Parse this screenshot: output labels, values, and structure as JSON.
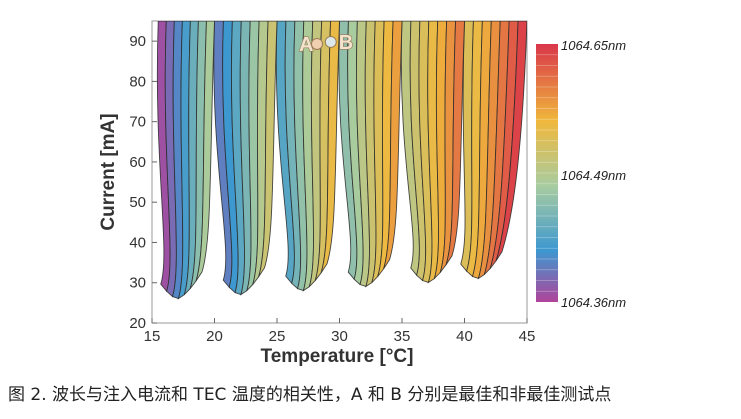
{
  "chart_data": {
    "type": "heatmap",
    "title": "",
    "xlabel": "Temperature [°C]",
    "ylabel": "Current [mA]",
    "xlim": [
      15,
      45
    ],
    "ylim": [
      20,
      95
    ],
    "xticks": [
      "15",
      "20",
      "25",
      "30",
      "35",
      "40",
      "45"
    ],
    "yticks": [
      "20",
      "30",
      "40",
      "50",
      "60",
      "70",
      "80",
      "90"
    ],
    "colorbar": {
      "labels": [
        "1064.65nm",
        "1064.49nm",
        "1064.36nm"
      ],
      "values": [
        1064.65,
        1064.49,
        1064.36
      ],
      "colors_top_to_bottom": [
        "#d9364a",
        "#f0b83c",
        "#a8cca0",
        "#3d98d0",
        "#b0449a"
      ]
    },
    "mode_bands": [
      {
        "x_top_left": 15.5,
        "x_top_right": 20,
        "tip_x": 18,
        "tip_y": 26,
        "min_nm": 1064.36,
        "max_nm": 1064.52
      },
      {
        "x_top_left": 20,
        "x_top_right": 25,
        "tip_x": 23,
        "tip_y": 27,
        "min_nm": 1064.4,
        "max_nm": 1064.55
      },
      {
        "x_top_left": 25,
        "x_top_right": 30,
        "tip_x": 28,
        "tip_y": 28,
        "min_nm": 1064.44,
        "max_nm": 1064.58
      },
      {
        "x_top_left": 30,
        "x_top_right": 35,
        "tip_x": 33,
        "tip_y": 29,
        "min_nm": 1064.48,
        "max_nm": 1064.6
      },
      {
        "x_top_left": 35,
        "x_top_right": 40,
        "tip_x": 38,
        "tip_y": 30,
        "min_nm": 1064.52,
        "max_nm": 1064.62
      },
      {
        "x_top_left": 40,
        "x_top_right": 45,
        "tip_x": 42,
        "tip_y": 31,
        "min_nm": 1064.55,
        "max_nm": 1064.65
      }
    ],
    "annotations": [
      {
        "label": "A",
        "x": 28.2,
        "y": 89.3,
        "color": "#f0cfb0"
      },
      {
        "label": "B",
        "x": 29.3,
        "y": 89.8,
        "color": "#dde8ea"
      }
    ]
  },
  "caption": "图 2. 波长与注入电流和 TEC 温度的相关性，A 和 B 分别是最佳和非最佳测试点"
}
